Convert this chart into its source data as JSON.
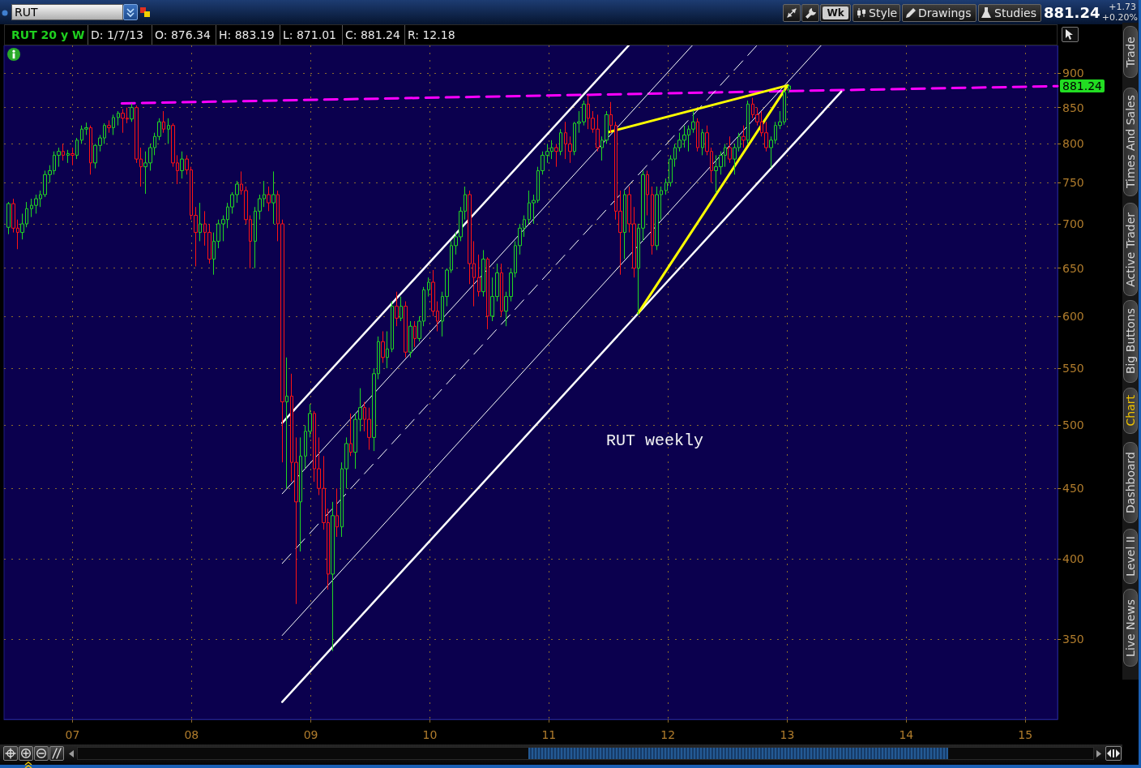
{
  "chart_data": {
    "type": "candlestick",
    "title": "RUT 20 y W",
    "log": true,
    "grid": true,
    "xlim": [
      "2006-06-05",
      "2015-04-10"
    ],
    "xticks": [
      {
        "value": "2007-01-01",
        "label": "07"
      },
      {
        "value": "2008-01-01",
        "label": "08"
      },
      {
        "value": "2009-01-01",
        "label": "09"
      },
      {
        "value": "2010-01-01",
        "label": "10"
      },
      {
        "value": "2011-01-01",
        "label": "11"
      },
      {
        "value": "2012-01-01",
        "label": "12"
      },
      {
        "value": "2013-01-01",
        "label": "13"
      },
      {
        "value": "2014-01-01",
        "label": "14"
      },
      {
        "value": "2015-01-01",
        "label": "15"
      }
    ],
    "ylim": [
      306,
      943
    ],
    "yticks": [
      350,
      400,
      450,
      500,
      550,
      600,
      650,
      700,
      750,
      800,
      850,
      900
    ],
    "annotations": [
      "RUT",
      "Wk",
      "Style",
      "Drawings",
      "Studies",
      "881.24",
      "+1.73",
      "+0.20%",
      "D: 1/7/13",
      "O: 876.34",
      "H: 883.19",
      "L: 871.01",
      "C: 881.24",
      "R: 12.18",
      "Trade",
      "Times And Sales",
      "Active Trader",
      "Big Buttons",
      "Chart",
      "Dashboard",
      "Level II",
      "Live News",
      "RUT weekly",
      "881.24"
    ],
    "series": [
      {
        "type": "candlestick",
        "x": [
          "2006-06-19",
          "2006-07-03",
          "2006-07-17",
          "2006-07-31",
          "2006-08-14",
          "2006-08-28",
          "2006-09-11",
          "2006-09-25",
          "2006-10-09",
          "2006-10-23",
          "2006-11-06",
          "2006-11-20",
          "2006-12-04",
          "2006-12-18",
          "2007-01-01",
          "2007-01-15",
          "2007-01-29",
          "2007-02-12",
          "2007-02-26",
          "2007-03-12",
          "2007-03-26",
          "2007-04-09",
          "2007-04-23",
          "2007-05-07",
          "2007-05-21",
          "2007-06-04",
          "2007-06-18",
          "2007-07-02",
          "2007-07-16",
          "2007-07-30",
          "2007-08-13",
          "2007-08-27",
          "2007-09-10",
          "2007-09-24",
          "2007-10-08",
          "2007-10-22",
          "2007-11-05",
          "2007-11-19",
          "2007-12-03",
          "2007-12-17",
          "2007-12-31",
          "2008-01-14",
          "2008-01-28",
          "2008-02-11",
          "2008-02-25",
          "2008-03-10",
          "2008-03-24",
          "2008-04-07",
          "2008-04-21",
          "2008-05-05",
          "2008-05-19",
          "2008-06-02",
          "2008-06-16",
          "2008-06-30",
          "2008-07-14",
          "2008-07-28",
          "2008-08-11",
          "2008-08-25",
          "2008-09-08",
          "2008-09-22",
          "2008-10-06",
          "2008-10-20",
          "2008-11-03",
          "2008-11-17",
          "2008-12-01",
          "2008-12-15",
          "2008-12-29",
          "2009-01-12",
          "2009-01-26",
          "2009-02-09",
          "2009-02-23",
          "2009-03-09",
          "2009-03-23",
          "2009-04-06",
          "2009-04-20",
          "2009-05-04",
          "2009-05-18",
          "2009-06-01",
          "2009-06-15",
          "2009-06-29",
          "2009-07-13",
          "2009-07-27",
          "2009-08-10",
          "2009-08-24",
          "2009-09-07",
          "2009-09-21",
          "2009-10-05",
          "2009-10-19",
          "2009-11-02",
          "2009-11-16",
          "2009-11-30",
          "2009-12-14",
          "2009-12-28",
          "2010-01-11",
          "2010-01-25",
          "2010-02-08",
          "2010-02-22",
          "2010-03-08",
          "2010-03-22",
          "2010-04-05",
          "2010-04-19",
          "2010-05-03",
          "2010-05-17",
          "2010-05-31",
          "2010-06-14",
          "2010-06-28",
          "2010-07-12",
          "2010-07-26",
          "2010-08-09",
          "2010-08-23",
          "2010-09-06",
          "2010-09-20",
          "2010-10-04",
          "2010-10-18",
          "2010-11-01",
          "2010-11-15",
          "2010-11-29",
          "2010-12-13",
          "2010-12-27",
          "2011-01-10",
          "2011-01-24",
          "2011-02-07",
          "2011-02-21",
          "2011-03-07",
          "2011-03-21",
          "2011-04-04",
          "2011-04-18",
          "2011-05-02",
          "2011-05-16",
          "2011-05-30",
          "2011-06-13",
          "2011-06-27",
          "2011-07-11",
          "2011-07-25",
          "2011-08-08",
          "2011-08-22",
          "2011-09-05",
          "2011-09-19",
          "2011-10-03",
          "2011-10-17",
          "2011-10-31",
          "2011-11-14",
          "2011-11-28",
          "2011-12-12",
          "2011-12-26",
          "2012-01-09",
          "2012-01-23",
          "2012-02-06",
          "2012-02-20",
          "2012-03-05",
          "2012-03-19",
          "2012-04-02",
          "2012-04-16",
          "2012-04-30",
          "2012-05-14",
          "2012-05-28",
          "2012-06-11",
          "2012-06-25",
          "2012-07-09",
          "2012-07-23",
          "2012-08-06",
          "2012-08-20",
          "2012-09-03",
          "2012-09-17",
          "2012-10-01",
          "2012-10-15",
          "2012-10-29",
          "2012-11-12",
          "2012-11-26",
          "2012-12-10",
          "2012-12-24",
          "2013-01-07"
        ],
        "ohlc": [
          [
            696,
            726,
            688,
            724
          ],
          [
            724,
            730,
            690,
            695
          ],
          [
            695,
            705,
            671,
            690
          ],
          [
            690,
            712,
            682,
            700
          ],
          [
            700,
            726,
            696,
            718
          ],
          [
            718,
            730,
            708,
            722
          ],
          [
            722,
            735,
            712,
            730
          ],
          [
            730,
            740,
            720,
            735
          ],
          [
            735,
            765,
            732,
            760
          ],
          [
            760,
            772,
            750,
            765
          ],
          [
            765,
            790,
            760,
            785
          ],
          [
            785,
            795,
            770,
            790
          ],
          [
            790,
            800,
            778,
            785
          ],
          [
            785,
            792,
            775,
            787
          ],
          [
            787,
            795,
            772,
            785
          ],
          [
            785,
            808,
            780,
            805
          ],
          [
            805,
            825,
            800,
            820
          ],
          [
            820,
            829,
            812,
            822
          ],
          [
            822,
            825,
            760,
            775
          ],
          [
            775,
            800,
            768,
            798
          ],
          [
            798,
            812,
            790,
            808
          ],
          [
            808,
            828,
            800,
            825
          ],
          [
            825,
            832,
            815,
            822
          ],
          [
            822,
            840,
            812,
            836
          ],
          [
            836,
            845,
            825,
            842
          ],
          [
            842,
            848,
            815,
            835
          ],
          [
            835,
            850,
            828,
            834
          ],
          [
            834,
            856,
            830,
            850
          ],
          [
            850,
            853,
            775,
            780
          ],
          [
            780,
            795,
            745,
            770
          ],
          [
            770,
            790,
            736,
            775
          ],
          [
            775,
            800,
            765,
            795
          ],
          [
            795,
            815,
            785,
            810
          ],
          [
            810,
            835,
            805,
            830
          ],
          [
            830,
            845,
            815,
            820
          ],
          [
            820,
            835,
            800,
            825
          ],
          [
            825,
            828,
            770,
            775
          ],
          [
            775,
            785,
            748,
            765
          ],
          [
            765,
            790,
            755,
            780
          ],
          [
            780,
            785,
            760,
            766
          ],
          [
            766,
            770,
            705,
            710
          ],
          [
            710,
            720,
            652,
            690
          ],
          [
            690,
            725,
            680,
            700
          ],
          [
            700,
            715,
            675,
            690
          ],
          [
            690,
            700,
            655,
            660
          ],
          [
            660,
            690,
            643,
            680
          ],
          [
            680,
            705,
            672,
            700
          ],
          [
            700,
            710,
            680,
            705
          ],
          [
            705,
            725,
            695,
            720
          ],
          [
            720,
            738,
            712,
            735
          ],
          [
            735,
            752,
            725,
            748
          ],
          [
            748,
            764,
            735,
            740
          ],
          [
            740,
            745,
            700,
            705
          ],
          [
            705,
            710,
            650,
            680
          ],
          [
            680,
            720,
            650,
            715
          ],
          [
            715,
            735,
            705,
            730
          ],
          [
            730,
            752,
            720,
            735
          ],
          [
            735,
            745,
            715,
            725
          ],
          [
            725,
            764,
            700,
            735
          ],
          [
            735,
            740,
            680,
            700
          ],
          [
            700,
            705,
            470,
            520
          ],
          [
            520,
            560,
            450,
            525
          ],
          [
            525,
            545,
            455,
            470
          ],
          [
            470,
            490,
            371,
            440
          ],
          [
            440,
            490,
            405,
            475
          ],
          [
            475,
            500,
            465,
            495
          ],
          [
            495,
            518,
            490,
            510
          ],
          [
            510,
            512,
            455,
            465
          ],
          [
            465,
            490,
            445,
            450
          ],
          [
            450,
            475,
            420,
            425
          ],
          [
            425,
            435,
            380,
            390
          ],
          [
            390,
            440,
            343,
            430
          ],
          [
            430,
            450,
            415,
            422
          ],
          [
            422,
            470,
            415,
            465
          ],
          [
            465,
            490,
            450,
            485
          ],
          [
            485,
            510,
            475,
            478
          ],
          [
            478,
            510,
            465,
            505
          ],
          [
            505,
            532,
            495,
            515
          ],
          [
            515,
            520,
            495,
            505
          ],
          [
            505,
            515,
            480,
            490
          ],
          [
            490,
            550,
            479,
            545
          ],
          [
            545,
            580,
            540,
            575
          ],
          [
            575,
            585,
            555,
            560
          ],
          [
            560,
            585,
            550,
            568
          ],
          [
            568,
            615,
            565,
            610
          ],
          [
            610,
            625,
            590,
            598
          ],
          [
            598,
            620,
            595,
            610
          ],
          [
            610,
            615,
            560,
            565
          ],
          [
            565,
            595,
            560,
            590
          ],
          [
            590,
            595,
            570,
            578
          ],
          [
            578,
            600,
            575,
            595
          ],
          [
            595,
            630,
            590,
            627
          ],
          [
            627,
            640,
            620,
            635
          ],
          [
            635,
            648,
            600,
            605
          ],
          [
            605,
            615,
            585,
            595
          ],
          [
            595,
            625,
            580,
            620
          ],
          [
            620,
            650,
            610,
            648
          ],
          [
            648,
            680,
            645,
            675
          ],
          [
            675,
            690,
            665,
            685
          ],
          [
            685,
            720,
            680,
            715
          ],
          [
            715,
            745,
            705,
            735
          ],
          [
            735,
            740,
            633,
            655
          ],
          [
            655,
            680,
            610,
            640
          ],
          [
            640,
            665,
            620,
            625
          ],
          [
            625,
            670,
            620,
            660
          ],
          [
            660,
            662,
            587,
            600
          ],
          [
            600,
            640,
            595,
            620
          ],
          [
            620,
            655,
            615,
            645
          ],
          [
            645,
            655,
            600,
            605
          ],
          [
            605,
            625,
            590,
            620
          ],
          [
            620,
            650,
            615,
            645
          ],
          [
            645,
            680,
            640,
            675
          ],
          [
            675,
            700,
            665,
            695
          ],
          [
            695,
            710,
            685,
            705
          ],
          [
            705,
            740,
            700,
            725
          ],
          [
            725,
            735,
            700,
            728
          ],
          [
            728,
            770,
            725,
            765
          ],
          [
            765,
            790,
            760,
            785
          ],
          [
            785,
            800,
            775,
            790
          ],
          [
            790,
            805,
            780,
            795
          ],
          [
            795,
            800,
            770,
            790
          ],
          [
            790,
            820,
            785,
            815
          ],
          [
            815,
            830,
            780,
            800
          ],
          [
            800,
            810,
            775,
            790
          ],
          [
            790,
            830,
            785,
            828
          ],
          [
            828,
            845,
            815,
            830
          ],
          [
            830,
            860,
            825,
            855
          ],
          [
            855,
            868,
            820,
            835
          ],
          [
            835,
            845,
            815,
            820
          ],
          [
            820,
            840,
            790,
            795
          ],
          [
            795,
            810,
            778,
            805
          ],
          [
            805,
            845,
            800,
            840
          ],
          [
            840,
            858,
            815,
            825
          ],
          [
            825,
            830,
            705,
            715
          ],
          [
            715,
            740,
            643,
            690
          ],
          [
            690,
            740,
            660,
            735
          ],
          [
            735,
            745,
            690,
            700
          ],
          [
            700,
            720,
            640,
            650
          ],
          [
            650,
            700,
            601,
            695
          ],
          [
            695,
            765,
            680,
            760
          ],
          [
            760,
            765,
            710,
            735
          ],
          [
            735,
            745,
            665,
            675
          ],
          [
            675,
            745,
            670,
            735
          ],
          [
            735,
            745,
            705,
            740
          ],
          [
            740,
            755,
            735,
            750
          ],
          [
            750,
            785,
            745,
            780
          ],
          [
            780,
            800,
            770,
            795
          ],
          [
            795,
            815,
            790,
            805
          ],
          [
            805,
            825,
            795,
            812
          ],
          [
            812,
            825,
            790,
            820
          ],
          [
            820,
            846,
            815,
            830
          ],
          [
            830,
            835,
            790,
            795
          ],
          [
            795,
            820,
            785,
            815
          ],
          [
            815,
            825,
            785,
            790
          ],
          [
            790,
            795,
            750,
            765
          ],
          [
            765,
            785,
            737,
            770
          ],
          [
            770,
            790,
            760,
            785
          ],
          [
            785,
            800,
            770,
            795
          ],
          [
            795,
            810,
            775,
            780
          ],
          [
            780,
            800,
            760,
            795
          ],
          [
            795,
            815,
            790,
            810
          ],
          [
            810,
            825,
            795,
            805
          ],
          [
            805,
            860,
            800,
            855
          ],
          [
            855,
            864,
            835,
            840
          ],
          [
            840,
            850,
            825,
            830
          ],
          [
            830,
            845,
            810,
            815
          ],
          [
            815,
            830,
            790,
            795
          ],
          [
            795,
            810,
            769,
            805
          ],
          [
            805,
            830,
            800,
            825
          ],
          [
            825,
            845,
            820,
            830
          ],
          [
            830,
            876,
            826,
            872
          ],
          [
            876.34,
            883.19,
            871.01,
            881.24
          ]
        ],
        "colors": [
          "#22d822",
          "#ff1414",
          "#ff1414",
          "#22d822",
          "#22d822",
          "#22d822",
          "#22d822",
          "#22d822",
          "#22d822",
          "#22d822",
          "#22d822",
          "#22d822",
          "#ff1414",
          "#22d822",
          "#ff1414",
          "#22d822",
          "#22d822",
          "#22d822",
          "#ff1414",
          "#22d822",
          "#22d822",
          "#22d822",
          "#ff1414",
          "#22d822",
          "#22d822",
          "#ff1414",
          "#ff1414",
          "#22d822",
          "#ff1414",
          "#ff1414",
          "#22d822",
          "#22d822",
          "#22d822",
          "#22d822",
          "#ff1414",
          "#22d822",
          "#ff1414",
          "#ff1414",
          "#22d822",
          "#ff1414",
          "#ff1414",
          "#ff1414",
          "#22d822",
          "#ff1414",
          "#ff1414",
          "#22d822",
          "#22d822",
          "#22d822",
          "#22d822",
          "#22d822",
          "#22d822",
          "#ff1414",
          "#ff1414",
          "#ff1414",
          "#22d822",
          "#22d822",
          "#22d822",
          "#ff1414",
          "#22d822",
          "#ff1414",
          "#ff1414",
          "#22d822",
          "#ff1414",
          "#ff1414",
          "#22d822",
          "#22d822",
          "#22d822",
          "#ff1414",
          "#ff1414",
          "#ff1414",
          "#ff1414",
          "#22d822",
          "#ff1414",
          "#22d822",
          "#22d822",
          "#ff1414",
          "#22d822",
          "#22d822",
          "#ff1414",
          "#ff1414",
          "#22d822",
          "#22d822",
          "#ff1414",
          "#22d822",
          "#22d822",
          "#ff1414",
          "#22d822",
          "#ff1414",
          "#22d822",
          "#ff1414",
          "#22d822",
          "#22d822",
          "#22d822",
          "#ff1414",
          "#ff1414",
          "#22d822",
          "#22d822",
          "#22d822",
          "#22d822",
          "#22d822",
          "#22d822",
          "#ff1414",
          "#ff1414",
          "#ff1414",
          "#22d822",
          "#ff1414",
          "#22d822",
          "#22d822",
          "#ff1414",
          "#22d822",
          "#22d822",
          "#22d822",
          "#22d822",
          "#22d822",
          "#22d822",
          "#22d822",
          "#22d822",
          "#22d822",
          "#22d822",
          "#22d822",
          "#ff1414",
          "#22d822",
          "#ff1414",
          "#ff1414",
          "#22d822",
          "#22d822",
          "#22d822",
          "#ff1414",
          "#ff1414",
          "#ff1414",
          "#22d822",
          "#22d822",
          "#ff1414",
          "#ff1414",
          "#ff1414",
          "#22d822",
          "#ff1414",
          "#ff1414",
          "#22d822",
          "#22d822",
          "#ff1414",
          "#ff1414",
          "#22d822",
          "#22d822",
          "#22d822",
          "#22d822",
          "#22d822",
          "#22d822",
          "#22d822",
          "#22d822",
          "#22d822",
          "#ff1414",
          "#22d822",
          "#ff1414",
          "#ff1414",
          "#22d822",
          "#22d822",
          "#22d822",
          "#ff1414",
          "#22d822",
          "#22d822",
          "#ff1414",
          "#22d822",
          "#ff1414",
          "#ff1414",
          "#ff1414",
          "#ff1414",
          "#22d822",
          "#22d822",
          "#22d822",
          "#22d822",
          "#22d822"
        ]
      },
      {
        "type": "line",
        "x": [
          "2007-06-01",
          "2015-04-10"
        ],
        "values": [
          856,
          881
        ],
        "color": "#ff00ff",
        "line_style": "dashed"
      },
      {
        "type": "line",
        "x": [
          "2008-10-05",
          "2011-09-03"
        ],
        "values": [
          502,
          943
        ],
        "color": "#ffffff",
        "line_style": "solid"
      },
      {
        "type": "line",
        "x": [
          "2008-10-05",
          "2012-03-16"
        ],
        "values": [
          446,
          943
        ],
        "color": "#ffffff",
        "line_style": "solid"
      },
      {
        "type": "line",
        "x": [
          "2008-10-05",
          "2012-09-30"
        ],
        "values": [
          397,
          943
        ],
        "color": "#ffffff",
        "line_style": "dashed"
      },
      {
        "type": "line",
        "x": [
          "2008-10-05",
          "2013-04-15"
        ],
        "values": [
          352,
          943
        ],
        "color": "#ffffff",
        "line_style": "solid"
      },
      {
        "type": "line",
        "x": [
          "2008-10-05",
          "2013-06-16"
        ],
        "values": [
          315,
          873
        ],
        "color": "#ffffff",
        "line_style": "solid"
      },
      {
        "type": "line",
        "x": [
          "2011-06-25",
          "2013-01-02"
        ],
        "values": [
          815,
          882
        ],
        "color": "#ffff00",
        "line_style": "solid"
      },
      {
        "type": "line",
        "x": [
          "2011-10-02",
          "2013-01-02"
        ],
        "values": [
          603,
          882
        ],
        "color": "#ffff00",
        "line_style": "solid"
      }
    ]
  }
}
